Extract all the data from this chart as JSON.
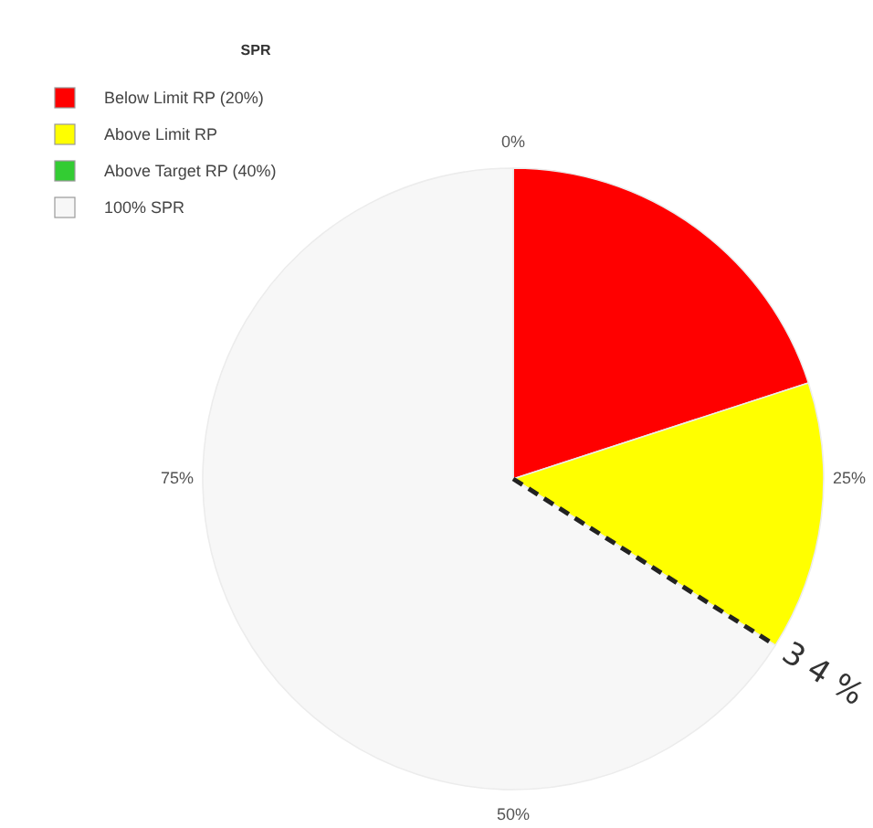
{
  "chart_data": {
    "type": "pie",
    "legend_title": "SPR",
    "legend": "top left",
    "categories": [
      "Below Limit RP (20%)",
      "Above Limit RP",
      "Above Target RP (40%)",
      "100% SPR"
    ],
    "values": [
      20,
      14,
      0,
      66
    ],
    "colors": [
      "#ff0000",
      "#ffff00",
      "#33cc33",
      "#f7f7f7"
    ],
    "needle": "100% SPR",
    "annotations": [
      "0%",
      "25%",
      "50%",
      "75%",
      "3 4 %"
    ]
  }
}
